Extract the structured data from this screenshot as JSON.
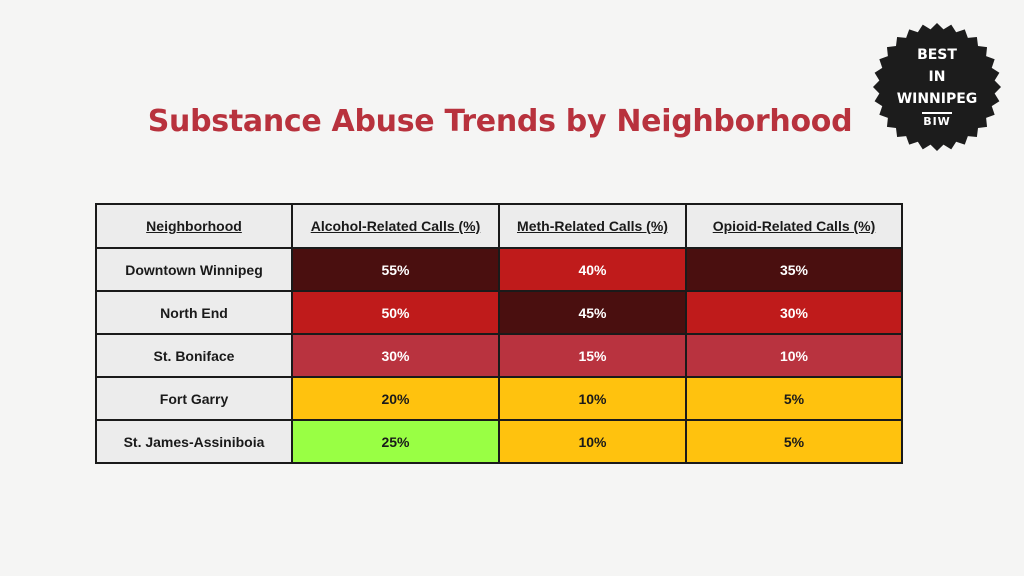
{
  "title": "Substance Abuse Trends by Neighborhood",
  "badge": {
    "lines": [
      "BEST",
      "IN",
      "WINNIPEG"
    ],
    "abbr": "BIW",
    "color": "#1c1c1c"
  },
  "colors": {
    "dark_red": "#4a0f0f",
    "red": "#bf1b1b",
    "rose": "#b9333f",
    "amber": "#ffc20e",
    "lime": "#99ff44",
    "header_bg": "#ececec",
    "title": "#b8323d"
  },
  "chart_data": {
    "type": "table",
    "title": "Substance Abuse Trends by Neighborhood",
    "columns": [
      "Neighborhood",
      "Alcohol-Related Calls (%)",
      "Meth-Related Calls (%)",
      "Opioid-Related Calls (%)"
    ],
    "rows": [
      {
        "neighborhood": "Downtown Winnipeg",
        "cells": [
          {
            "text": "55%",
            "value": 55,
            "fill": "#4a0f0f",
            "light": false
          },
          {
            "text": "40%",
            "value": 40,
            "fill": "#bf1b1b",
            "light": false
          },
          {
            "text": "35%",
            "value": 35,
            "fill": "#4a0f0f",
            "light": false
          }
        ]
      },
      {
        "neighborhood": "North End",
        "cells": [
          {
            "text": "50%",
            "value": 50,
            "fill": "#bf1b1b",
            "light": false
          },
          {
            "text": "45%",
            "value": 45,
            "fill": "#4a0f0f",
            "light": false
          },
          {
            "text": "30%",
            "value": 30,
            "fill": "#bf1b1b",
            "light": false
          }
        ]
      },
      {
        "neighborhood": "St. Boniface",
        "cells": [
          {
            "text": "30%",
            "value": 30,
            "fill": "#b9333f",
            "light": false
          },
          {
            "text": "15%",
            "value": 15,
            "fill": "#b9333f",
            "light": false
          },
          {
            "text": "10%",
            "value": 10,
            "fill": "#b9333f",
            "light": false
          }
        ]
      },
      {
        "neighborhood": "Fort Garry",
        "cells": [
          {
            "text": "20%",
            "value": 20,
            "fill": "#ffc20e",
            "light": true
          },
          {
            "text": "10%",
            "value": 10,
            "fill": "#ffc20e",
            "light": true
          },
          {
            "text": "5%",
            "value": 5,
            "fill": "#ffc20e",
            "light": true
          }
        ]
      },
      {
        "neighborhood": "St. James-Assiniboia",
        "cells": [
          {
            "text": "25%",
            "value": 25,
            "fill": "#99ff44",
            "light": true
          },
          {
            "text": "10%",
            "value": 10,
            "fill": "#ffc20e",
            "light": true
          },
          {
            "text": "5%",
            "value": 5,
            "fill": "#ffc20e",
            "light": true
          }
        ]
      }
    ]
  }
}
